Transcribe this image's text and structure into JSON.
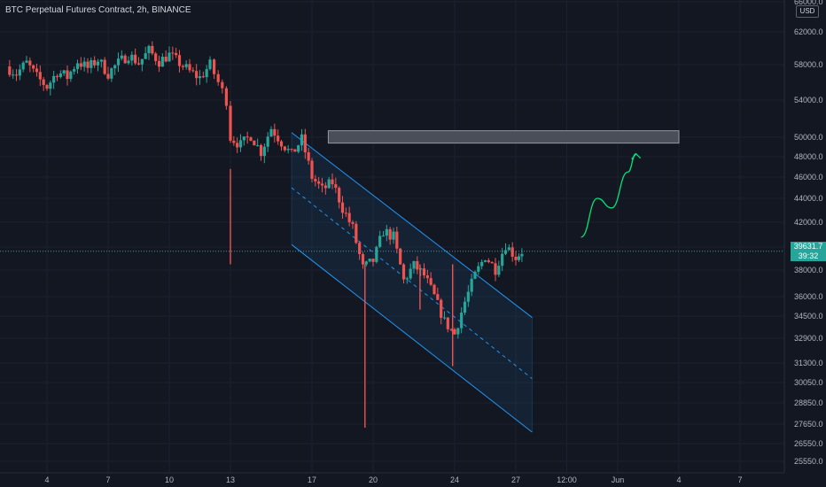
{
  "chart_title": "BTC Perpetual Futures Contract, 2h, BINANCE",
  "currency_badge": "USD",
  "last_price_label": "39631.7",
  "countdown_label": "39:32",
  "colors": {
    "background": "#131722",
    "up": "#26a69a",
    "down": "#ef5350",
    "channel": "#2196f3",
    "arrow": "#00e676",
    "zone": "#4a4e59"
  },
  "chart_data": {
    "type": "candlestick",
    "ylim": [
      25000,
      66000
    ],
    "y_ticks": [
      {
        "label": "66000.0",
        "value": 66000
      },
      {
        "label": "62000.0",
        "value": 62000
      },
      {
        "label": "58000.0",
        "value": 58000
      },
      {
        "label": "54000.0",
        "value": 54000
      },
      {
        "label": "50000.0",
        "value": 50000
      },
      {
        "label": "48000.0",
        "value": 48000
      },
      {
        "label": "46000.0",
        "value": 46000
      },
      {
        "label": "44000.0",
        "value": 44000
      },
      {
        "label": "42000.0",
        "value": 42000
      },
      {
        "label": "40000.0",
        "value": 40000
      },
      {
        "label": "38000.0",
        "value": 38000
      },
      {
        "label": "36000.0",
        "value": 36000
      },
      {
        "label": "34500.0",
        "value": 34500
      },
      {
        "label": "32900.0",
        "value": 32900
      },
      {
        "label": "31300.0",
        "value": 31300
      },
      {
        "label": "30050.0",
        "value": 30050
      },
      {
        "label": "28850.0",
        "value": 28850
      },
      {
        "label": "27650.0",
        "value": 27650
      },
      {
        "label": "26550.0",
        "value": 26550
      },
      {
        "label": "25550.0",
        "value": 25550
      }
    ],
    "x_ticks": [
      {
        "label": "4",
        "day": 4
      },
      {
        "label": "7",
        "day": 7
      },
      {
        "label": "10",
        "day": 10
      },
      {
        "label": "13",
        "day": 13
      },
      {
        "label": "17",
        "day": 17
      },
      {
        "label": "20",
        "day": 20
      },
      {
        "label": "24",
        "day": 24
      },
      {
        "label": "27",
        "day": 27
      },
      {
        "label": "12:00",
        "day": 29.5
      },
      {
        "label": "Jun",
        "day": 32
      },
      {
        "label": "4",
        "day": 35
      },
      {
        "label": "7",
        "day": 38
      }
    ],
    "last_price": 39631.7,
    "path": [
      [
        2.0,
        57800
      ],
      [
        2.5,
        57000
      ],
      [
        3.0,
        58200
      ],
      [
        3.5,
        56600
      ],
      [
        4.0,
        55500
      ],
      [
        4.5,
        57200
      ],
      [
        5.0,
        56600
      ],
      [
        5.5,
        58400
      ],
      [
        6.0,
        57600
      ],
      [
        6.5,
        58600
      ],
      [
        7.0,
        57000
      ],
      [
        7.5,
        58200
      ],
      [
        8.0,
        59200
      ],
      [
        8.5,
        58200
      ],
      [
        9.0,
        59700
      ],
      [
        9.5,
        58400
      ],
      [
        10.0,
        59200
      ],
      [
        10.5,
        58200
      ],
      [
        11.0,
        57200
      ],
      [
        11.5,
        56500
      ],
      [
        12.0,
        58000
      ],
      [
        12.4,
        56000
      ],
      [
        12.8,
        54000
      ],
      [
        13.0,
        50000
      ],
      [
        13.5,
        49200
      ],
      [
        14.0,
        50200
      ],
      [
        14.5,
        48500
      ],
      [
        15.0,
        51000
      ],
      [
        15.5,
        49500
      ],
      [
        16.0,
        48200
      ],
      [
        16.5,
        49800
      ],
      [
        17.0,
        46000
      ],
      [
        17.5,
        44800
      ],
      [
        18.0,
        45500
      ],
      [
        18.5,
        43200
      ],
      [
        19.0,
        41500
      ],
      [
        19.5,
        38200
      ],
      [
        20.0,
        38800
      ],
      [
        20.5,
        41300
      ],
      [
        21.0,
        40800
      ],
      [
        21.5,
        37200
      ],
      [
        22.0,
        38400
      ],
      [
        22.5,
        37600
      ],
      [
        23.0,
        36000
      ],
      [
        23.5,
        34100
      ],
      [
        24.0,
        33200
      ],
      [
        24.5,
        35600
      ],
      [
        25.0,
        37600
      ],
      [
        25.5,
        39200
      ],
      [
        26.0,
        38100
      ],
      [
        26.5,
        40200
      ],
      [
        27.0,
        39100
      ],
      [
        27.3,
        39631.7
      ]
    ],
    "wicks": [
      {
        "day": 19.6,
        "low": 27450
      },
      {
        "day": 23.9,
        "low": 31100
      },
      {
        "day": 13.0,
        "low": 46800
      },
      {
        "day": 22.3,
        "low": 35000
      }
    ],
    "channel": {
      "upper": [
        [
          16.0,
          50500
        ],
        [
          27.8,
          34400
        ]
      ],
      "lower": [
        [
          16.0,
          40200
        ],
        [
          27.8,
          27200
        ]
      ],
      "mid": [
        [
          16.0,
          45000
        ],
        [
          27.8,
          30300
        ]
      ]
    },
    "resistance_zone": {
      "start_day": 17.8,
      "end_day": 35.0,
      "low": 49400,
      "high": 50700
    },
    "projection": [
      [
        30.2,
        40800
      ],
      [
        31.0,
        44000
      ],
      [
        31.7,
        43200
      ],
      [
        32.5,
        46500
      ],
      [
        32.9,
        48300
      ]
    ]
  }
}
